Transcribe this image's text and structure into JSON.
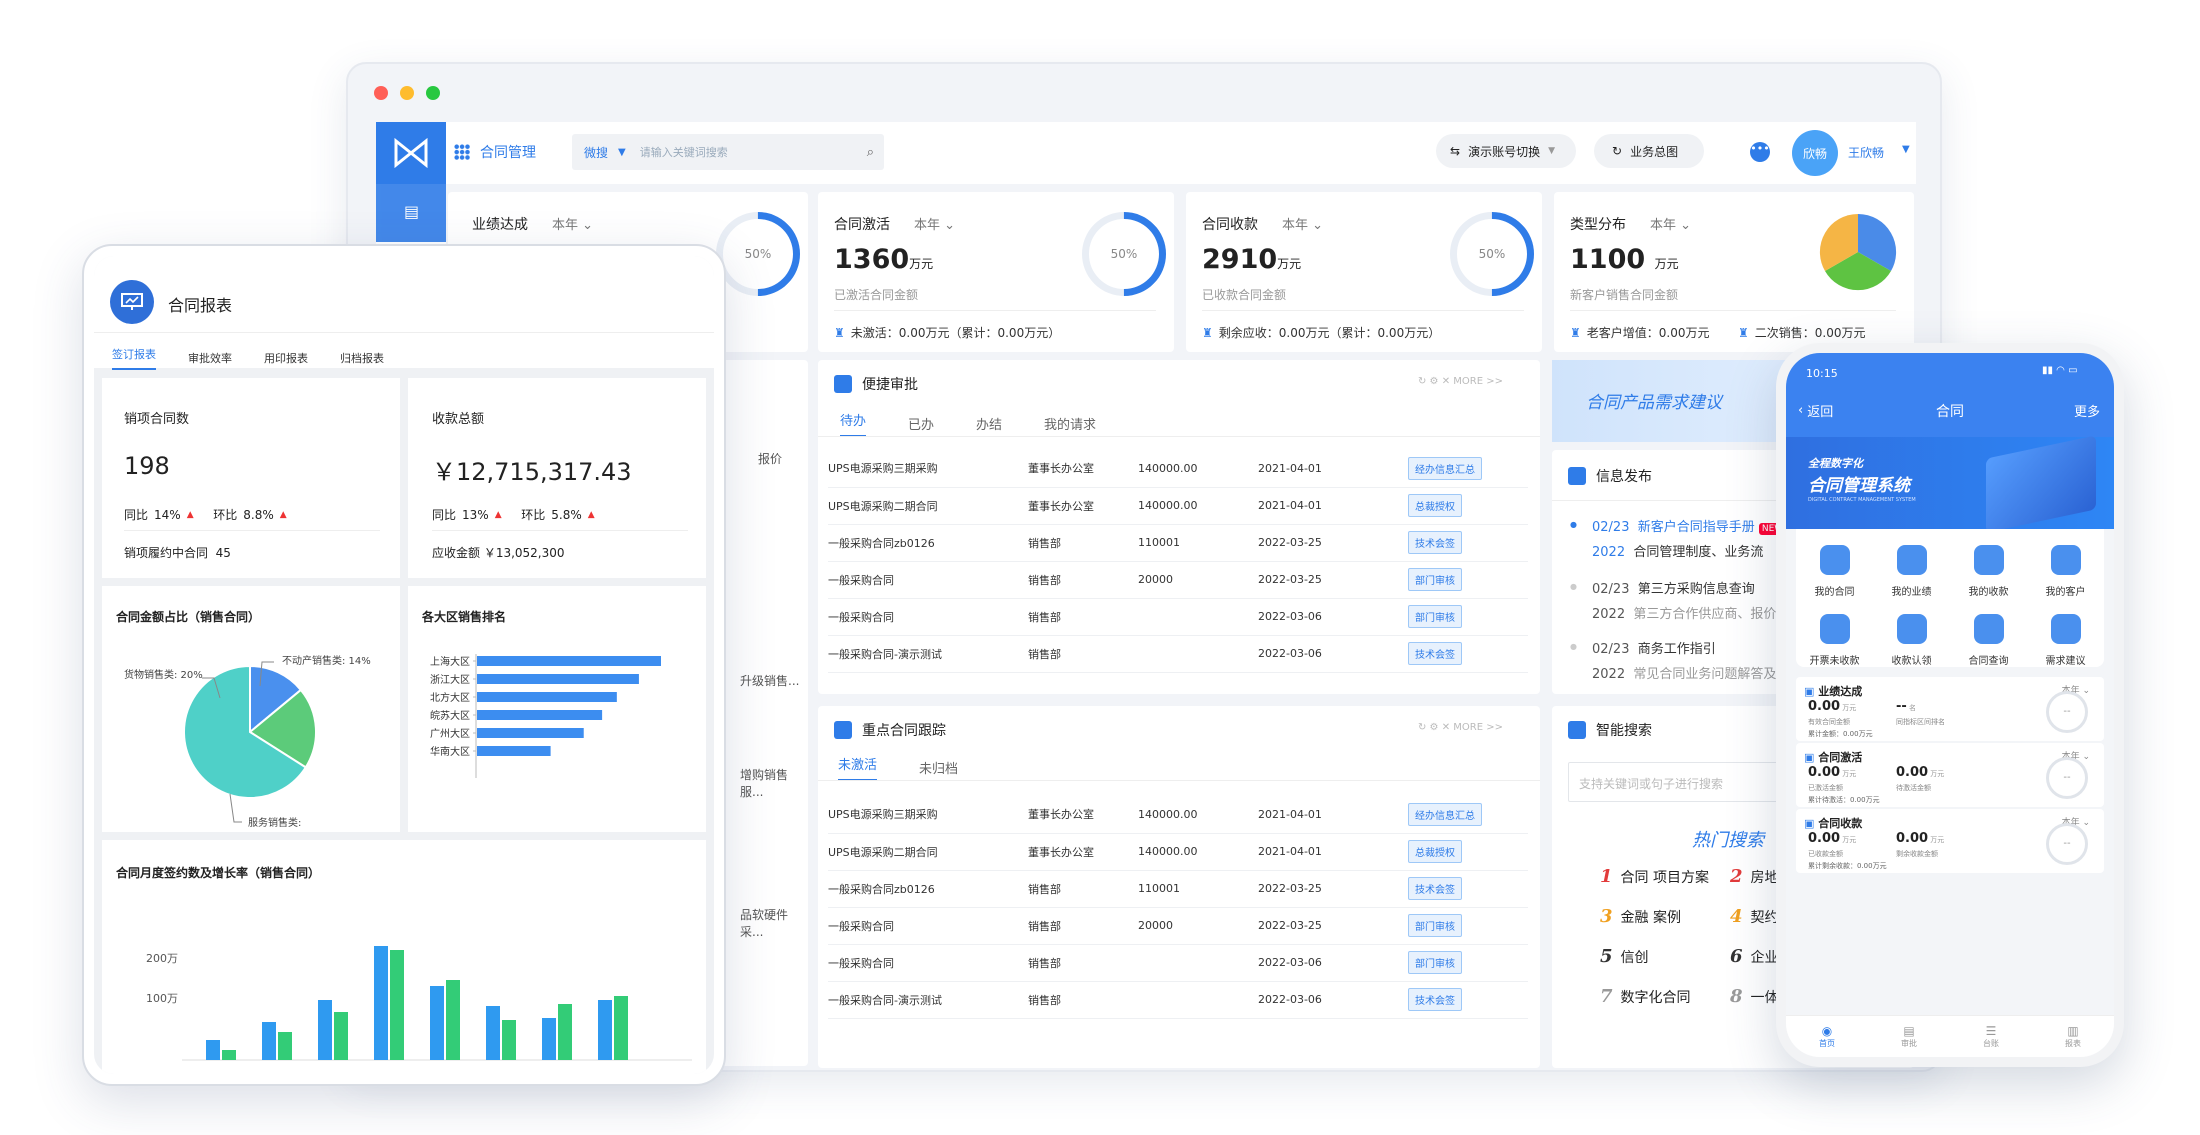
{
  "desktop": {
    "app_title": "合同管理",
    "search_scope": "微搜",
    "search_placeholder": "请输入关键词搜索",
    "switch_account": "演示账号切换",
    "overview": "业务总图",
    "avatar_text": "欣畅",
    "user_name": "王欣畅",
    "kpis": [
      {
        "title": "业绩达成",
        "period": "本年",
        "ring": "50%"
      },
      {
        "title": "合同激活",
        "period": "本年",
        "value": "1360",
        "unit": "万元",
        "sub": "已激活合同金额",
        "ring": "50%",
        "foot": "未激活：0.00万元（累计：0.00万元）"
      },
      {
        "title": "合同收款",
        "period": "本年",
        "value": "2910",
        "unit": "万元",
        "sub": "已收款合同金额",
        "ring": "50%",
        "foot": "剩余应收：0.00万元（累计：0.00万元）"
      },
      {
        "title": "类型分布",
        "period": "本年",
        "value": "1100",
        "unit": "万元",
        "sub": "新客户销售合同金额",
        "foot1": "老客户增值：0.00万元",
        "foot2": "二次销售：0.00万元"
      }
    ],
    "left_fragments": [
      "报价",
      "升级销售...",
      "增购销售服...",
      "品软硬件采..."
    ],
    "approval": {
      "title": "便捷审批",
      "more": "MORE >>",
      "tabs": [
        "待办",
        "已办",
        "办结",
        "我的请求"
      ],
      "rows": [
        [
          "UPS电源采购三期采购",
          "董事长办公室",
          "140000.00",
          "2021-04-01",
          "经办信息汇总"
        ],
        [
          "UPS电源采购二期合同",
          "董事长办公室",
          "140000.00",
          "2021-04-01",
          "总裁授权"
        ],
        [
          "一般采购合同zb0126",
          "销售部",
          "110001",
          "2022-03-25",
          "技术会签"
        ],
        [
          "一般采购合同",
          "销售部",
          "20000",
          "2022-03-25",
          "部门审核"
        ],
        [
          "一般采购合同",
          "销售部",
          "",
          "2022-03-06",
          "部门审核"
        ],
        [
          "一般采购合同-演示测试",
          "销售部",
          "",
          "2022-03-06",
          "技术会签"
        ]
      ]
    },
    "tracking": {
      "title": "重点合同跟踪",
      "more": "MORE >>",
      "tabs": [
        "未激活",
        "未归档"
      ],
      "rows": [
        [
          "UPS电源采购三期采购",
          "董事长办公室",
          "140000.00",
          "2021-04-01",
          "经办信息汇总"
        ],
        [
          "UPS电源采购二期合同",
          "董事长办公室",
          "140000.00",
          "2021-04-01",
          "总裁授权"
        ],
        [
          "一般采购合同zb0126",
          "销售部",
          "110001",
          "2022-03-25",
          "技术会签"
        ],
        [
          "一般采购合同",
          "销售部",
          "20000",
          "2022-03-25",
          "部门审核"
        ],
        [
          "一般采购合同",
          "销售部",
          "",
          "2022-03-06",
          "部门审核"
        ],
        [
          "一般采购合同-演示测试",
          "销售部",
          "",
          "2022-03-06",
          "技术会签"
        ]
      ]
    },
    "banner": "合同产品需求建议",
    "news": {
      "title": "信息发布",
      "items": [
        {
          "date": "02/23",
          "year": "2022",
          "line1": "新客户合同指导手册",
          "line2": "合同管理制度、业务流",
          "badge": "NEW"
        },
        {
          "date": "02/23",
          "year": "2022",
          "line1": "第三方采购信息查询",
          "line2": "第三方合作供应商、报价"
        },
        {
          "date": "02/23",
          "year": "2022",
          "line1": "商务工作指引",
          "line2": "常见合同业务问题解答及"
        }
      ]
    },
    "smart": {
      "title": "智能搜索",
      "placeholder": "支持关键词或句子进行搜索",
      "hot_title": "热门搜索",
      "hot": [
        {
          "n": "1",
          "t": "合同 项目方案",
          "c": "#e23b3b"
        },
        {
          "n": "2",
          "t": "房地",
          "c": "#e23b3b"
        },
        {
          "n": "3",
          "t": "金融 案例",
          "c": "#f0a020"
        },
        {
          "n": "4",
          "t": "契约",
          "c": "#f0a020"
        },
        {
          "n": "5",
          "t": "信创",
          "c": "#333333"
        },
        {
          "n": "6",
          "t": "企业",
          "c": "#333333"
        },
        {
          "n": "7",
          "t": "数字化合同",
          "c": "#999999"
        },
        {
          "n": "8",
          "t": "一体",
          "c": "#999999"
        }
      ]
    }
  },
  "tablet": {
    "title": "合同报表",
    "tabs": [
      "签订报表",
      "审批效率",
      "用印报表",
      "归档报表"
    ],
    "c1": {
      "title": "销项合同数",
      "value": "198",
      "yoy_label": "同比",
      "yoy": "14%",
      "mom_label": "环比",
      "mom": "8.8%",
      "foot_label": "销项履约中合同",
      "foot": "45"
    },
    "c2": {
      "title": "收款总额",
      "value": "￥12,715,317.43",
      "yoy_label": "同比",
      "yoy": "13%",
      "mom_label": "环比",
      "mom": "5.8%",
      "foot": "应收金额 ￥13,052,300"
    },
    "pie_title": "合同金额占比（销售合同）",
    "pie_labels": [
      "不动产销售类: 14%",
      "货物销售类: 20%",
      "服务销售类:"
    ],
    "rank_title": "各大区销售排名",
    "monthly_title": "合同月度签约数及增长率（销售合同）",
    "monthly_ticks": [
      "200万",
      "100万"
    ]
  },
  "phone": {
    "time": "10:15",
    "back": "返回",
    "title": "合同",
    "more": "更多",
    "hero_line1": "全程数字化",
    "hero_line2": "合同管理系统",
    "hero_en": "DIGITAL CONTRACT MANAGEMENT SYSTEM",
    "grid": [
      "我的合同",
      "我的业绩",
      "我的收款",
      "我的客户",
      "开票未收款",
      "收款认领",
      "合同查询",
      "需求建议"
    ],
    "sections": [
      {
        "title": "业绩达成",
        "period": "本年",
        "v1": "0.00",
        "u1": "万元",
        "l1": "有效合同金额",
        "l1b": "累计金额：0.00万元",
        "v2": "--",
        "u2": "名",
        "l2": "同指标区间排名",
        "ring": "--"
      },
      {
        "title": "合同激活",
        "period": "本年",
        "v1": "0.00",
        "u1": "万元",
        "l1": "已激活金额",
        "l1b": "累计待激活：0.00万元",
        "v2": "0.00",
        "u2": "万元",
        "l2": "待激活金额",
        "ring": "--"
      },
      {
        "title": "合同收款",
        "period": "本年",
        "v1": "0.00",
        "u1": "万元",
        "l1": "已收款金额",
        "l1b": "累计剩余收款：0.00万元",
        "v2": "0.00",
        "u2": "万元",
        "l2": "剩余收款金额",
        "ring": "--"
      }
    ],
    "nav": [
      "首页",
      "审批",
      "台账",
      "报表"
    ]
  },
  "chart_data": [
    {
      "type": "pie",
      "title": "合同金额占比（销售合同）",
      "categories": [
        "不动产销售类",
        "货物销售类",
        "服务销售类"
      ],
      "values": [
        14,
        20,
        66
      ]
    },
    {
      "type": "bar",
      "title": "各大区销售排名",
      "categories": [
        "上海大区",
        "浙江大区",
        "北方大区",
        "皖苏大区",
        "广州大区",
        "华南大区"
      ],
      "values": [
        100,
        88,
        76,
        68,
        58,
        40
      ]
    },
    {
      "type": "bar",
      "title": "合同月度签约数及增长率（销售合同）",
      "ytick_labels": [
        "200万",
        "100万"
      ],
      "series": [
        {
          "values": [
            50,
            95,
            150,
            285,
            185,
            135,
            105,
            150
          ]
        },
        {
          "values": [
            25,
            70,
            120,
            275,
            200,
            100,
            140,
            160
          ]
        }
      ]
    }
  ]
}
